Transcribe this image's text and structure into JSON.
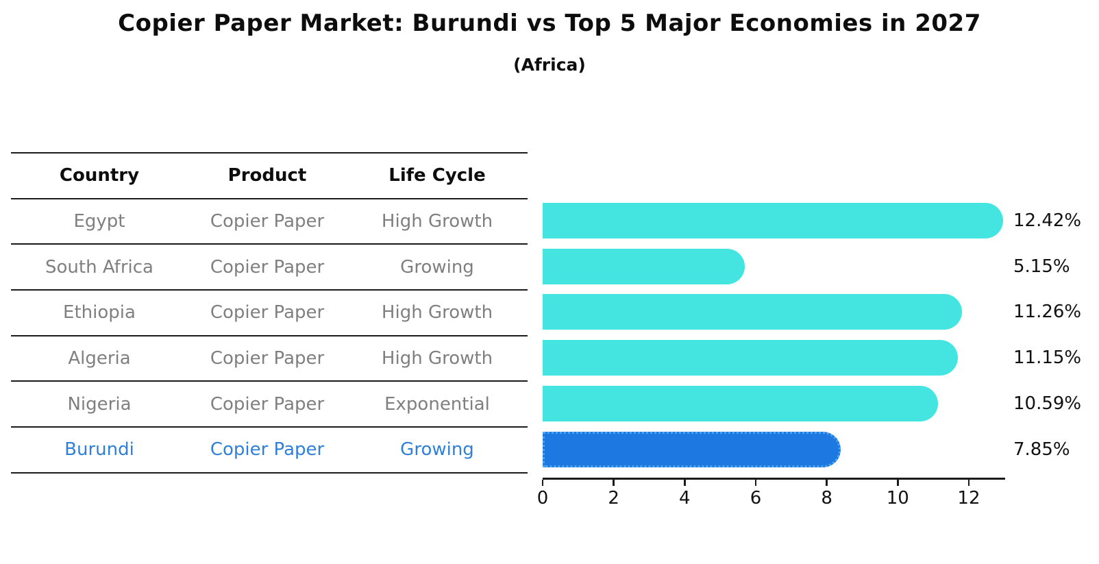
{
  "title": "Copier Paper Market: Burundi vs Top 5 Major Economies in 2027",
  "subtitle": "(Africa)",
  "table": {
    "columns": [
      "Country",
      "Product",
      "Life Cycle"
    ],
    "rows": [
      {
        "country": "Egypt",
        "product": "Copier Paper",
        "life_cycle": "High Growth",
        "highlight": false
      },
      {
        "country": "South Africa",
        "product": "Copier Paper",
        "life_cycle": "Growing",
        "highlight": false
      },
      {
        "country": "Ethiopia",
        "product": "Copier Paper",
        "life_cycle": "High Growth",
        "highlight": false
      },
      {
        "country": "Algeria",
        "product": "Copier Paper",
        "life_cycle": "High Growth",
        "highlight": false
      },
      {
        "country": "Nigeria",
        "product": "Copier Paper",
        "life_cycle": "Exponential",
        "highlight": false
      },
      {
        "country": "Burundi",
        "product": "Copier Paper",
        "life_cycle": "Growing",
        "highlight": true
      }
    ]
  },
  "chart_data": {
    "type": "bar",
    "orientation": "horizontal",
    "title": "Copier Paper Market: Burundi vs Top 5 Major Economies in 2027 (Africa)",
    "categories": [
      "Egypt",
      "South Africa",
      "Ethiopia",
      "Algeria",
      "Nigeria",
      "Burundi"
    ],
    "values": [
      12.42,
      5.15,
      11.26,
      11.15,
      10.59,
      7.85
    ],
    "value_labels": [
      "12.42%",
      "5.15%",
      "11.26%",
      "11.15%",
      "10.59%",
      "7.85%"
    ],
    "xlabel": "",
    "ylabel": "",
    "xlim": [
      0,
      13
    ],
    "xticks": [
      0,
      2,
      4,
      6,
      8,
      10,
      12
    ],
    "grid": false,
    "legend": "none",
    "highlight_index": 5,
    "colors": {
      "bar_default": "#44e5e0",
      "bar_highlight": "#1e78e2",
      "bar_highlight_border": "#4fa6ee",
      "highlight_text": "#2f80d8",
      "row_text": "#7f7f7f",
      "header_text": "#0d0d0d",
      "axis": "#1a1a1a",
      "value_label_text": "#111111"
    }
  }
}
